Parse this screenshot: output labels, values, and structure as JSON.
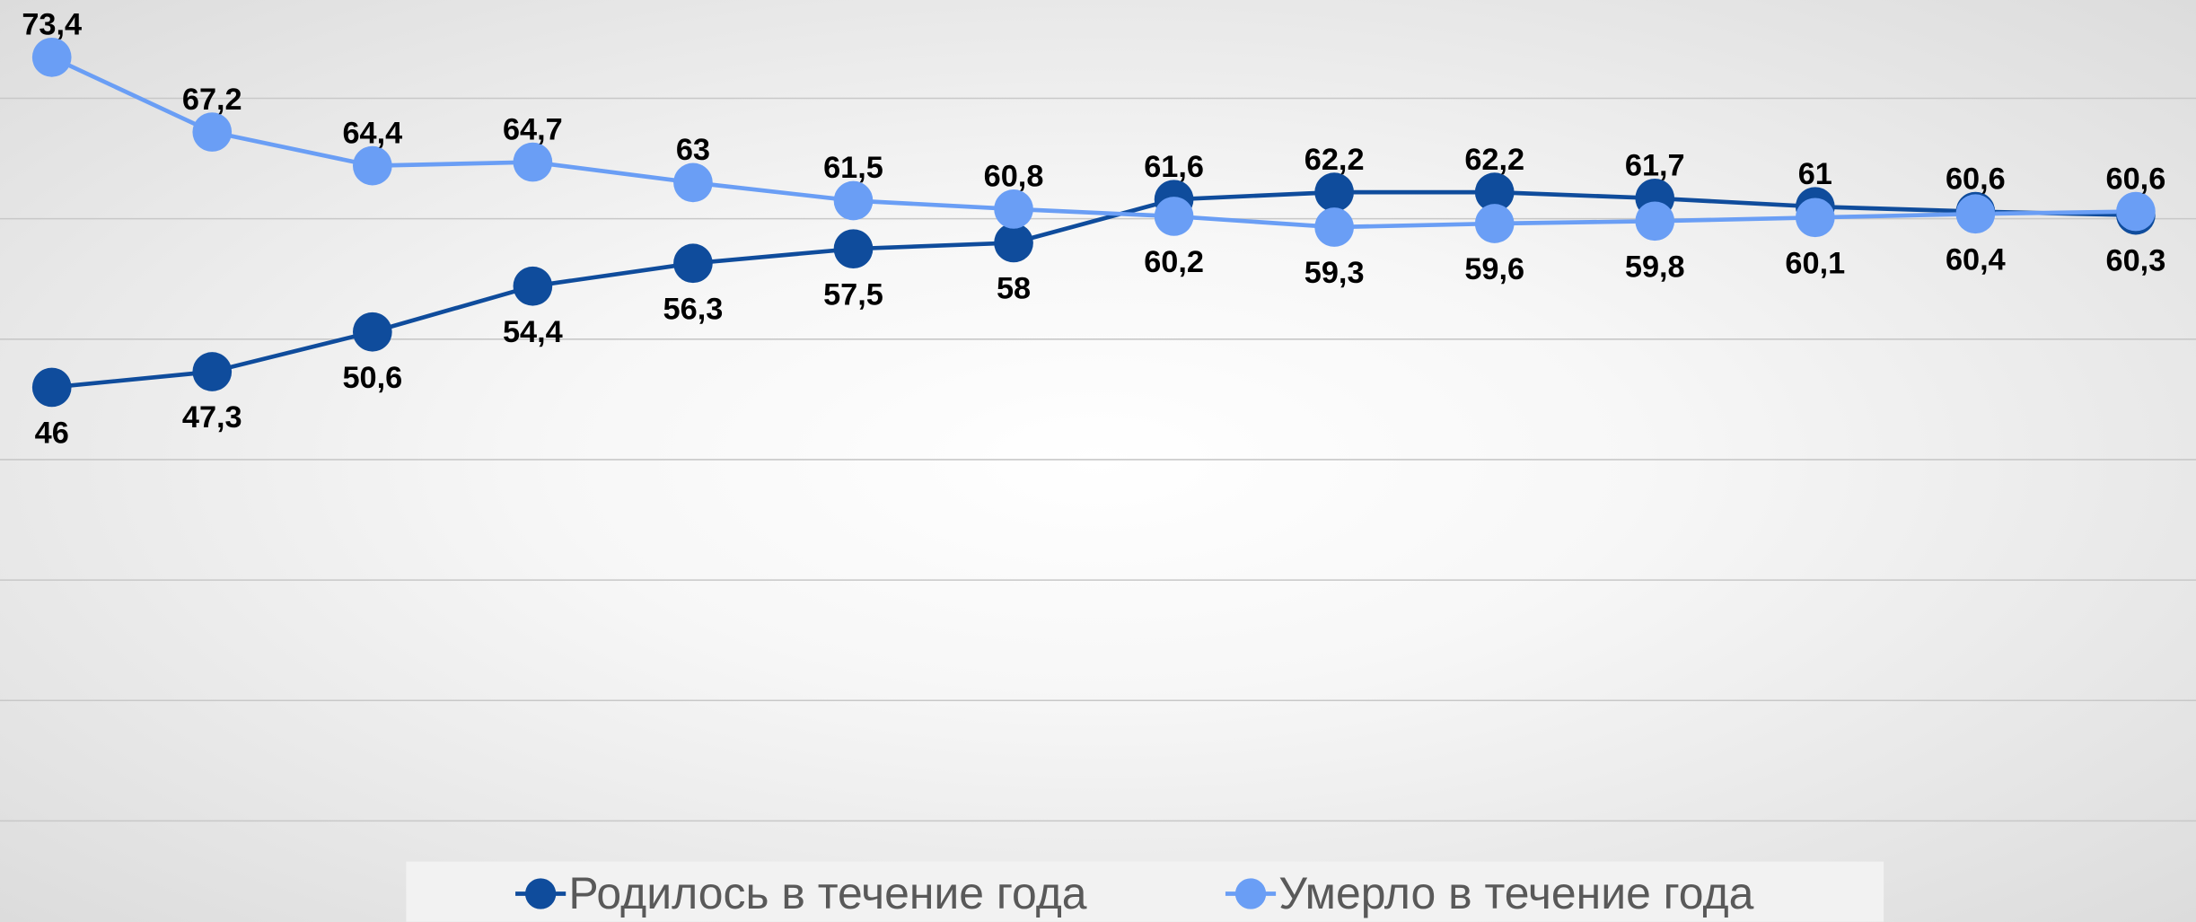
{
  "chart_data": {
    "type": "line",
    "categories": [
      null,
      null,
      null,
      null,
      null,
      null,
      null,
      null,
      null,
      null,
      null,
      null,
      null,
      null
    ],
    "series": [
      {
        "name": "Родилось в течение года",
        "color": "#0f4c9c",
        "values": [
          46,
          47.3,
          50.6,
          54.4,
          56.3,
          57.5,
          58,
          61.6,
          62.2,
          62.2,
          61.7,
          61,
          60.6,
          60.3
        ],
        "value_labels": [
          "46",
          "47,3",
          "50,6",
          "54,4",
          "56,3",
          "57,5",
          "58",
          "61,6",
          "62,2",
          "62,2",
          "61,7",
          "61",
          "60,6",
          "60,3"
        ]
      },
      {
        "name": "Умерло в течение года",
        "color": "#6a9ef5",
        "values": [
          73.4,
          67.2,
          64.4,
          64.7,
          63,
          61.5,
          60.8,
          60.2,
          59.3,
          59.6,
          59.8,
          60.1,
          60.4,
          60.6
        ],
        "value_labels": [
          "73,4",
          "67,2",
          "64,4",
          "64,7",
          "63",
          "61,5",
          "60,8",
          "60,2",
          "59,3",
          "59,6",
          "59,8",
          "60,1",
          "60,4",
          "60,6"
        ]
      }
    ],
    "ylim": [
      10,
      80
    ],
    "yticks": [
      10,
      20,
      30,
      40,
      50,
      60,
      70
    ],
    "grid": true,
    "legend": "bottom"
  }
}
